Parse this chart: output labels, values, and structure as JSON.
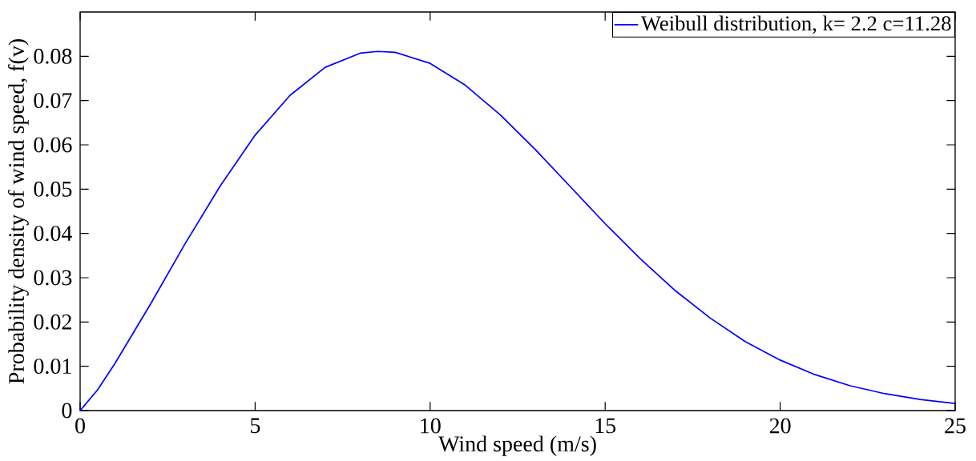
{
  "chart_data": {
    "type": "line",
    "xlabel": "Wind speed (m/s)",
    "ylabel": "Probability density of wind speed, f(v)",
    "x": [
      0,
      0.5,
      1,
      2,
      3,
      4,
      5,
      6,
      7,
      8,
      8.5,
      9,
      10,
      11,
      12,
      13,
      14,
      15,
      16,
      17,
      18,
      19,
      20,
      21,
      22,
      23,
      24,
      25
    ],
    "series": [
      {
        "name": "Weibull distribution, k= 2.2 c=11.28",
        "color": "#0000ff",
        "values": [
          0,
          0.0047,
          0.0107,
          0.0239,
          0.0377,
          0.0507,
          0.0622,
          0.0712,
          0.0775,
          0.0807,
          0.0811,
          0.0809,
          0.0784,
          0.0735,
          0.0668,
          0.059,
          0.0506,
          0.0422,
          0.0343,
          0.0271,
          0.0209,
          0.0156,
          0.0114,
          0.0081,
          0.0056,
          0.0038,
          0.0025,
          0.0016
        ]
      }
    ],
    "xlim": [
      0,
      25
    ],
    "ylim": [
      0,
      0.09
    ],
    "xticks": [
      0,
      5,
      10,
      15,
      20,
      25
    ],
    "yticks": [
      0,
      0.01,
      0.02,
      0.03,
      0.04,
      0.05,
      0.06,
      0.07,
      0.08
    ],
    "legend": "top right",
    "grid": false,
    "marker": "none",
    "line_style": "solid"
  }
}
